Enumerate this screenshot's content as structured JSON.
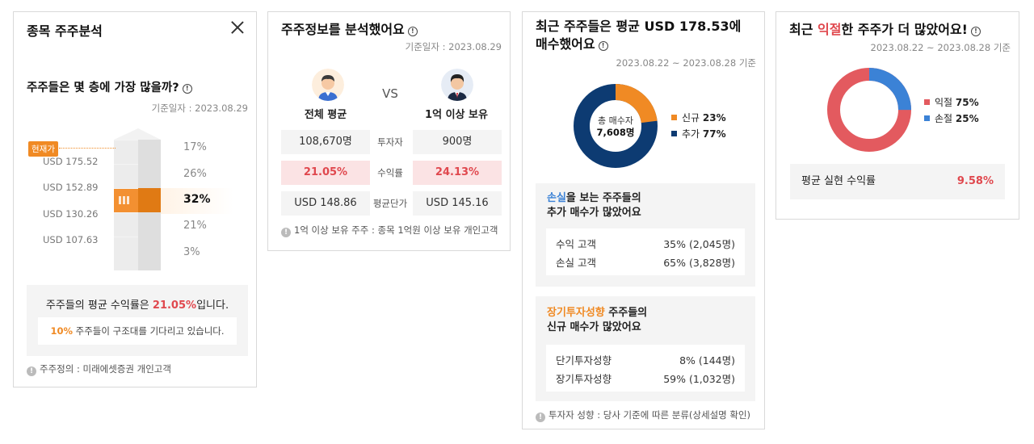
{
  "panel1": {
    "title": "종목 주주분석",
    "question": "주주들은 몇 층에 가장 많을까?",
    "date": "기준일자 : 2023.08.29",
    "current_badge": "현재가",
    "prices": [
      "USD 175.52",
      "USD 152.89",
      "USD 130.26",
      "USD 107.63"
    ],
    "floors": [
      {
        "pct": "17%",
        "value": 17
      },
      {
        "pct": "26%",
        "value": 26
      },
      {
        "pct": "32%",
        "value": 32,
        "highlight": true
      },
      {
        "pct": "21%",
        "value": 21
      },
      {
        "pct": "3%",
        "value": 3
      }
    ],
    "summary_pre": "주주들의 평균 수익률은 ",
    "summary_value": "21.05%",
    "summary_post": "입니다.",
    "inner_value": "10%",
    "inner_text": " 주주들이 구조대를 기다리고 있습니다.",
    "note": "주주정의 : 미래에셋증권 개인고객"
  },
  "panel2": {
    "title": "주주정보를 분석했어요",
    "date": "기준일자 : 2023.08.29",
    "left_label": "전체 평균",
    "right_label": "1억 이상 보유",
    "vs": "VS",
    "rows": [
      {
        "label": "투자자",
        "left": "108,670명",
        "right": "900명"
      },
      {
        "label": "수익률",
        "left": "21.05%",
        "right": "24.13%"
      },
      {
        "label": "평균단가",
        "left": "USD 148.86",
        "right": "USD 145.16"
      }
    ],
    "note": "1억 이상 보유 주주 : 종목 1억원 이상 보유 개인고객"
  },
  "panel3": {
    "title_line1": "최근 주주들은 평균 USD 178.53에",
    "title_line2": "매수했어요",
    "date": "2023.08.22 ~ 2023.08.28 기준",
    "donut_label": "총 매수자",
    "donut_value": "7,608명",
    "legend": [
      {
        "name": "신규",
        "value": "23%",
        "pct": 23,
        "color": "#f08a24"
      },
      {
        "name": "추가",
        "value": "77%",
        "pct": 77,
        "color": "#0d3b72"
      }
    ],
    "box1": {
      "head_accent": "손실",
      "head_rest1": "을 보는 주주들의",
      "head_line2": "추가 매수가 많았어요",
      "rows": [
        {
          "label": "수익 고객",
          "value": "35% (2,045명)"
        },
        {
          "label": "손실 고객",
          "value": "65% (3,828명)"
        }
      ]
    },
    "box2": {
      "head_accent": "장기투자성향",
      "head_rest1": " 주주들의",
      "head_line2": "신규 매수가 많았어요",
      "rows": [
        {
          "label": "단기투자성향",
          "value": "8% (144명)"
        },
        {
          "label": "장기투자성향",
          "value": "59% (1,032명)"
        }
      ]
    },
    "note": "투자자 성향 : 당사 기준에 따른 분류(상세설명 확인)"
  },
  "panel4": {
    "title_pre": "최근 ",
    "title_accent": "익절",
    "title_post": "한 주주가 더 많았어요!",
    "date": "2023.08.22 ~ 2023.08.28 기준",
    "legend": [
      {
        "name": "익절",
        "value": "75%",
        "pct": 75,
        "color": "#e35a5f"
      },
      {
        "name": "손절",
        "value": "25%",
        "pct": 25,
        "color": "#3b82d6"
      }
    ],
    "realized_label": "평균 실현 수익률",
    "realized_value": "9.58%"
  }
}
